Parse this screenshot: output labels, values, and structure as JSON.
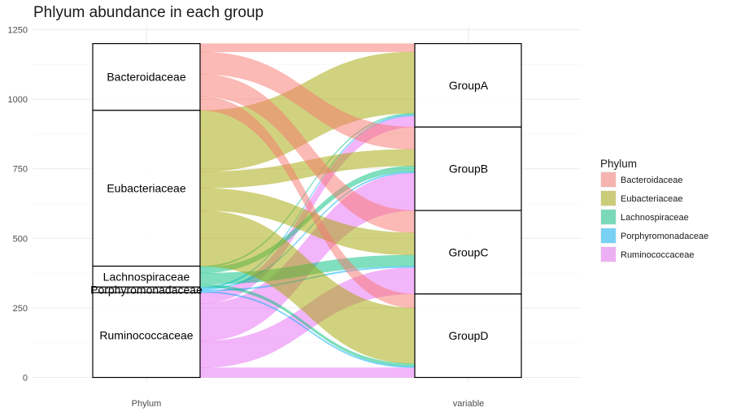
{
  "chart_data": {
    "type": "alluvial",
    "title": "Phlyum abundance in each group",
    "xlabel_left": "Phylum",
    "xlabel_right": "variable",
    "ylim": [
      0,
      1250
    ],
    "yticks": [
      0,
      250,
      500,
      750,
      1000,
      1250
    ],
    "axes": [
      "Phylum",
      "variable"
    ],
    "phyla": [
      "Bacteroidaceae",
      "Eubacteriaceae",
      "Lachnospiraceae",
      "Porphyromonadaceae",
      "Ruminococcaceae"
    ],
    "phylum_strata_top_to_bottom": [
      "Bacteroidaceae",
      "Eubacteriaceae",
      "Lachnospiraceae",
      "Porphyromonadaceae",
      "Ruminococcaceae"
    ],
    "groups": [
      "GroupA",
      "GroupB",
      "GroupC",
      "GroupD"
    ],
    "colors": {
      "Bacteroidaceae": "#F8766D",
      "Eubacteriaceae": "#A3A500",
      "Lachnospiraceae": "#00BF7D",
      "Porphyromonadaceae": "#00B0F6",
      "Ruminococcaceae": "#E76BF3"
    },
    "flows": {
      "GroupA": {
        "Bacteroidaceae": 30,
        "Eubacteriaceae": 220,
        "Lachnospiraceae": 5,
        "Porphyromonadaceae": 5,
        "Ruminococcaceae": 40
      },
      "GroupB": {
        "Bacteroidaceae": 80,
        "Eubacteriaceae": 60,
        "Lachnospiraceae": 20,
        "Porphyromonadaceae": 5,
        "Ruminococcaceae": 135
      },
      "GroupC": {
        "Bacteroidaceae": 80,
        "Eubacteriaceae": 80,
        "Lachnospiraceae": 40,
        "Porphyromonadaceae": 5,
        "Ruminococcaceae": 95
      },
      "GroupD": {
        "Bacteroidaceae": 50,
        "Eubacteriaceae": 200,
        "Lachnospiraceae": 10,
        "Porphyromonadaceae": 5,
        "Ruminococcaceae": 35
      }
    },
    "legend_title": "Phylum",
    "legend_position": "right",
    "grid": true
  }
}
